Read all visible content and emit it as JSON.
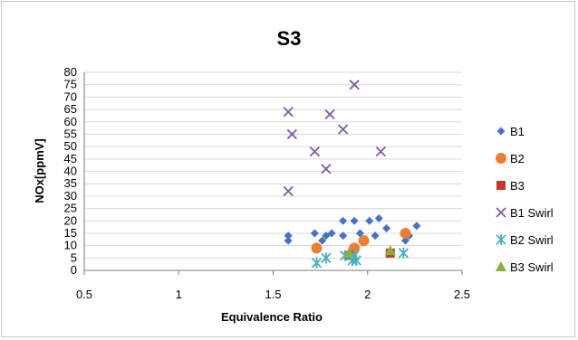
{
  "chart_data": {
    "type": "scatter",
    "title": "S3",
    "xlabel": "Equivalence Ratio",
    "ylabel": "NOx[ppmV]",
    "xlim": [
      0.5,
      2.5
    ],
    "ylim": [
      0,
      80
    ],
    "x_ticks": [
      "0.5",
      "1",
      "1.5",
      "2",
      "2.5"
    ],
    "y_ticks": [
      "0",
      "5",
      "10",
      "15",
      "20",
      "25",
      "30",
      "35",
      "40",
      "45",
      "50",
      "55",
      "60",
      "65",
      "70",
      "75",
      "80"
    ],
    "grid": true,
    "legend_position": "right",
    "series": [
      {
        "name": "B1",
        "marker": "diamond",
        "color": "#4472C4",
        "points": [
          [
            1.58,
            12
          ],
          [
            1.58,
            14
          ],
          [
            1.72,
            15
          ],
          [
            1.76,
            12
          ],
          [
            1.78,
            14
          ],
          [
            1.81,
            15
          ],
          [
            1.87,
            20
          ],
          [
            1.87,
            14
          ],
          [
            1.93,
            20
          ],
          [
            1.96,
            15
          ],
          [
            2.01,
            20
          ],
          [
            2.04,
            14
          ],
          [
            2.06,
            21
          ],
          [
            2.1,
            17
          ],
          [
            2.2,
            12
          ],
          [
            2.22,
            14
          ],
          [
            2.26,
            18
          ]
        ]
      },
      {
        "name": "B2",
        "marker": "circle",
        "color": "#ED7D31",
        "points": [
          [
            1.73,
            9
          ],
          [
            1.93,
            9
          ],
          [
            1.98,
            12
          ],
          [
            2.2,
            15
          ]
        ]
      },
      {
        "name": "B3",
        "marker": "square",
        "color": "#C0392B",
        "points": [
          [
            1.9,
            6
          ],
          [
            2.12,
            7
          ]
        ]
      },
      {
        "name": "B1 Swirl",
        "marker": "x",
        "color": "#7E5BA6",
        "points": [
          [
            1.58,
            64
          ],
          [
            1.6,
            55
          ],
          [
            1.58,
            32
          ],
          [
            1.72,
            48
          ],
          [
            1.78,
            41
          ],
          [
            1.8,
            63
          ],
          [
            1.87,
            57
          ],
          [
            1.93,
            75
          ],
          [
            2.07,
            48
          ]
        ]
      },
      {
        "name": "B2 Swirl",
        "marker": "star",
        "color": "#4BACC6",
        "points": [
          [
            1.73,
            3
          ],
          [
            1.78,
            5
          ],
          [
            1.88,
            6
          ],
          [
            1.92,
            4
          ],
          [
            1.93,
            6
          ],
          [
            1.94,
            4
          ],
          [
            2.19,
            7
          ]
        ]
      },
      {
        "name": "B3 Swirl",
        "marker": "triangle",
        "color": "#8CB040",
        "points": [
          [
            1.9,
            7
          ],
          [
            2.12,
            8
          ]
        ]
      }
    ]
  }
}
